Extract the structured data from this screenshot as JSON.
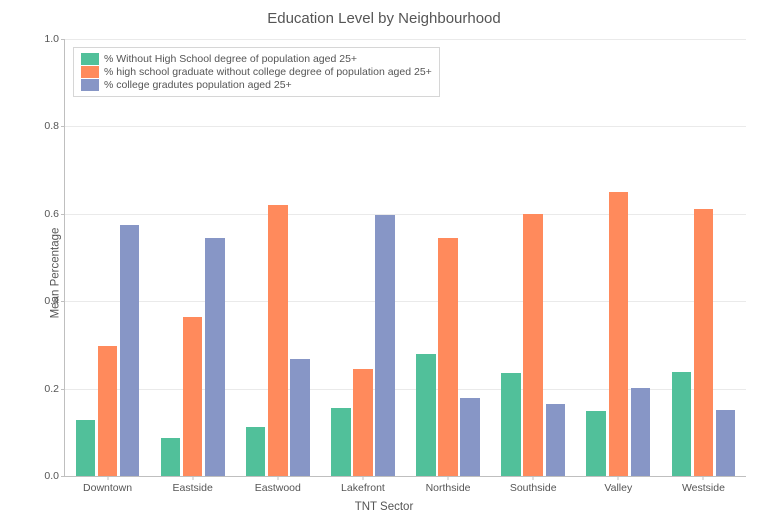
{
  "chart": {
    "type": "bar",
    "title": "Education Level by Neighbourhood",
    "title_fontsize": 15,
    "xlabel": "TNT Sector",
    "ylabel": "Mean Percentage",
    "label_fontsize": 11.5,
    "ylim": [
      0.0,
      1.0
    ],
    "ytick_step": 0.2,
    "yticks": [
      0.0,
      0.2,
      0.4,
      0.6,
      0.8,
      1.0
    ],
    "ytick_labels": [
      "0.0",
      "0.2",
      "0.4",
      "0.6",
      "0.8",
      "1.0"
    ],
    "grid_color": "#eaeaea",
    "axis_color": "#bfbfbf",
    "background_color": "#ffffff",
    "tick_fontsize": 10.5,
    "categories": [
      "Downtown",
      "Eastside",
      "Eastwood",
      "Lakefront",
      "Northside",
      "Southside",
      "Valley",
      "Westside"
    ],
    "bar_group_width": 0.78,
    "bar_inner_gap": 0.03,
    "series": [
      {
        "name": "% Without High School degree of population aged 25+",
        "color": "#51c09a",
        "values": [
          0.128,
          0.088,
          0.112,
          0.155,
          0.28,
          0.235,
          0.148,
          0.238
        ]
      },
      {
        "name": "% high school graduate without college degree of population aged 25+",
        "color": "#ff8a5c",
        "values": [
          0.298,
          0.365,
          0.62,
          0.245,
          0.545,
          0.6,
          0.65,
          0.61
        ]
      },
      {
        "name": "% college gradutes population aged 25+",
        "color": "#8796c6",
        "values": [
          0.575,
          0.545,
          0.268,
          0.598,
          0.178,
          0.165,
          0.202,
          0.15
        ]
      }
    ],
    "legend": {
      "position": "upper-left",
      "fontsize": 10.5,
      "border_color": "#d6d6d6"
    }
  }
}
